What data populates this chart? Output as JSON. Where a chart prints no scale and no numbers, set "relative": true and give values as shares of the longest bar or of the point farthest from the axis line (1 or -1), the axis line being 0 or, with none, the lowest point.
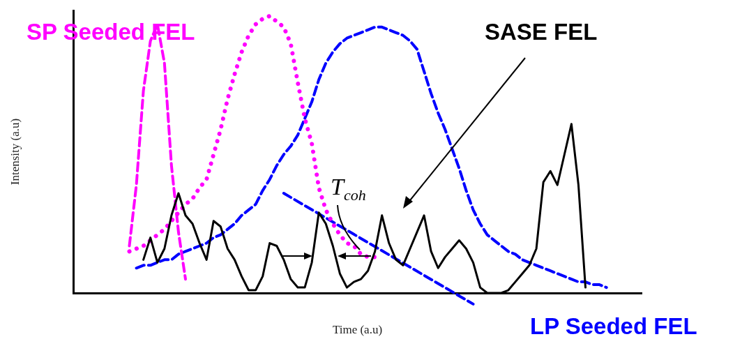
{
  "chart_data": {
    "type": "line",
    "relative": true,
    "xlabel": "Time (a.u)",
    "ylabel": "Intensity (a.u)",
    "marker": "none",
    "legend": false,
    "annotations": [
      "T$_{coh}$"
    ],
    "categories": [
      null,
      null,
      null,
      null,
      null,
      null,
      null,
      null,
      null,
      null,
      null,
      null,
      null,
      null,
      null,
      null,
      null,
      null,
      null,
      null,
      null,
      null,
      null,
      null,
      null,
      null,
      null,
      null,
      null,
      null,
      null,
      null,
      null,
      null,
      null,
      null,
      null,
      null,
      null,
      null,
      null,
      null,
      null,
      null,
      null,
      null,
      null,
      null,
      null,
      null,
      null,
      null,
      null,
      null,
      null,
      null,
      null,
      null,
      null,
      null,
      null,
      null,
      null,
      null,
      null,
      null,
      null,
      null,
      null,
      null,
      null,
      null,
      null,
      null,
      null,
      null,
      null,
      null,
      null,
      null,
      null,
      null
    ],
    "series": [
      {
        "name": "SASE FEL",
        "color": "#000000",
        "line_style": "solid",
        "values": [
          null,
          null,
          null,
          null,
          null,
          null,
          null,
          null,
          null,
          null,
          0.12,
          0.2,
          0.11,
          0.16,
          0.28,
          0.36,
          0.28,
          0.25,
          0.18,
          0.12,
          0.26,
          0.24,
          0.16,
          0.12,
          0.06,
          0.01,
          0.01,
          0.06,
          0.18,
          0.17,
          0.12,
          0.05,
          0.02,
          0.02,
          0.11,
          0.29,
          0.25,
          0.17,
          0.07,
          0.02,
          0.04,
          0.05,
          0.08,
          0.15,
          0.28,
          0.18,
          0.12,
          0.1,
          0.16,
          0.22,
          0.28,
          0.15,
          0.09,
          0.13,
          0.16,
          0.19,
          0.16,
          0.11,
          0.02,
          0,
          0,
          0,
          0.01,
          0.04,
          0.07,
          0.1,
          0.16,
          0.4,
          0.44,
          0.39,
          0.5,
          0.61,
          0.39,
          0.02,
          null,
          null,
          null,
          null,
          null,
          null,
          null,
          null
        ]
      },
      {
        "name": "SP Seeded FEL",
        "color": "#ff00ff",
        "line_style": "dashed",
        "values": [
          null,
          null,
          null,
          null,
          null,
          null,
          null,
          null,
          0.17,
          0.39,
          0.73,
          0.91,
          0.97,
          0.83,
          0.46,
          0.22,
          0.05,
          null,
          null,
          null,
          null,
          null,
          null,
          null,
          null,
          null,
          null,
          null,
          null,
          null,
          null,
          null,
          null,
          null,
          null,
          null,
          null,
          null,
          null,
          null,
          null,
          null,
          null,
          null,
          null,
          null,
          null,
          null,
          null,
          null,
          null,
          null,
          null,
          null,
          null,
          null,
          null,
          null,
          null,
          null,
          null,
          null,
          null,
          null,
          null,
          null,
          null,
          null,
          null,
          null,
          null,
          null,
          null,
          null,
          null,
          null,
          null,
          null,
          null,
          null,
          null,
          null
        ]
      },
      {
        "color": "#ff00ff",
        "line_style": "dotted",
        "values": [
          null,
          null,
          null,
          null,
          null,
          null,
          null,
          null,
          0.15,
          0.16,
          0.17,
          0.19,
          0.21,
          0.23,
          0.26,
          0.29,
          0.32,
          0.34,
          0.38,
          0.41,
          0.5,
          0.59,
          0.7,
          0.79,
          0.87,
          0.93,
          0.97,
          0.99,
          1,
          0.98,
          0.96,
          0.9,
          0.76,
          0.63,
          0.54,
          0.38,
          0.3,
          0.25,
          0.21,
          0.18,
          0.17,
          0.14,
          0.13,
          0.13,
          null,
          null,
          null,
          null,
          null,
          null,
          null,
          null,
          null,
          null,
          null,
          null,
          null,
          null,
          null,
          null,
          null,
          null,
          null,
          null,
          null,
          null,
          null,
          null,
          null,
          null,
          null,
          null,
          null,
          null,
          null,
          null,
          null,
          null,
          null,
          null,
          null,
          null
        ]
      },
      {
        "name": "LP Seeded FEL",
        "color": "#0000ff",
        "line_style": "dashed",
        "values": [
          null,
          null,
          null,
          null,
          null,
          null,
          null,
          null,
          null,
          0.09,
          0.1,
          0.1,
          0.11,
          0.12,
          0.12,
          0.14,
          0.15,
          0.16,
          0.17,
          0.18,
          0.2,
          0.21,
          0.23,
          0.25,
          0.28,
          0.3,
          0.32,
          0.37,
          0.41,
          0.46,
          0.5,
          0.53,
          0.57,
          0.63,
          0.69,
          0.77,
          0.83,
          0.87,
          0.9,
          0.92,
          0.93,
          0.94,
          0.95,
          0.96,
          0.96,
          0.95,
          0.94,
          0.93,
          0.91,
          0.88,
          0.8,
          0.72,
          0.65,
          0.59,
          0.52,
          0.45,
          0.37,
          0.3,
          0.25,
          0.21,
          0.19,
          0.17,
          0.15,
          0.14,
          0.12,
          0.11,
          0.1,
          0.09,
          0.08,
          0.07,
          0.06,
          0.05,
          0.04,
          0.04,
          0.03,
          0.03,
          0.02,
          null,
          null,
          null,
          null,
          null
        ]
      },
      {
        "color": "#0000ff",
        "line_style": "dashed",
        "values": [
          null,
          null,
          null,
          null,
          null,
          null,
          null,
          null,
          null,
          null,
          null,
          null,
          null,
          null,
          null,
          null,
          null,
          null,
          null,
          null,
          null,
          null,
          null,
          null,
          null,
          null,
          null,
          null,
          null,
          null,
          0.36,
          null,
          null,
          null,
          null,
          null,
          null,
          null,
          null,
          null,
          null,
          null,
          null,
          null,
          null,
          null,
          null,
          null,
          null,
          null,
          null,
          null,
          null,
          null,
          null,
          null,
          null,
          -0.04,
          null,
          null,
          null,
          null,
          null,
          null,
          null,
          null,
          null,
          null,
          null,
          null,
          null,
          null,
          null,
          null,
          null,
          null,
          null,
          null,
          null,
          null,
          null,
          null
        ]
      }
    ]
  }
}
